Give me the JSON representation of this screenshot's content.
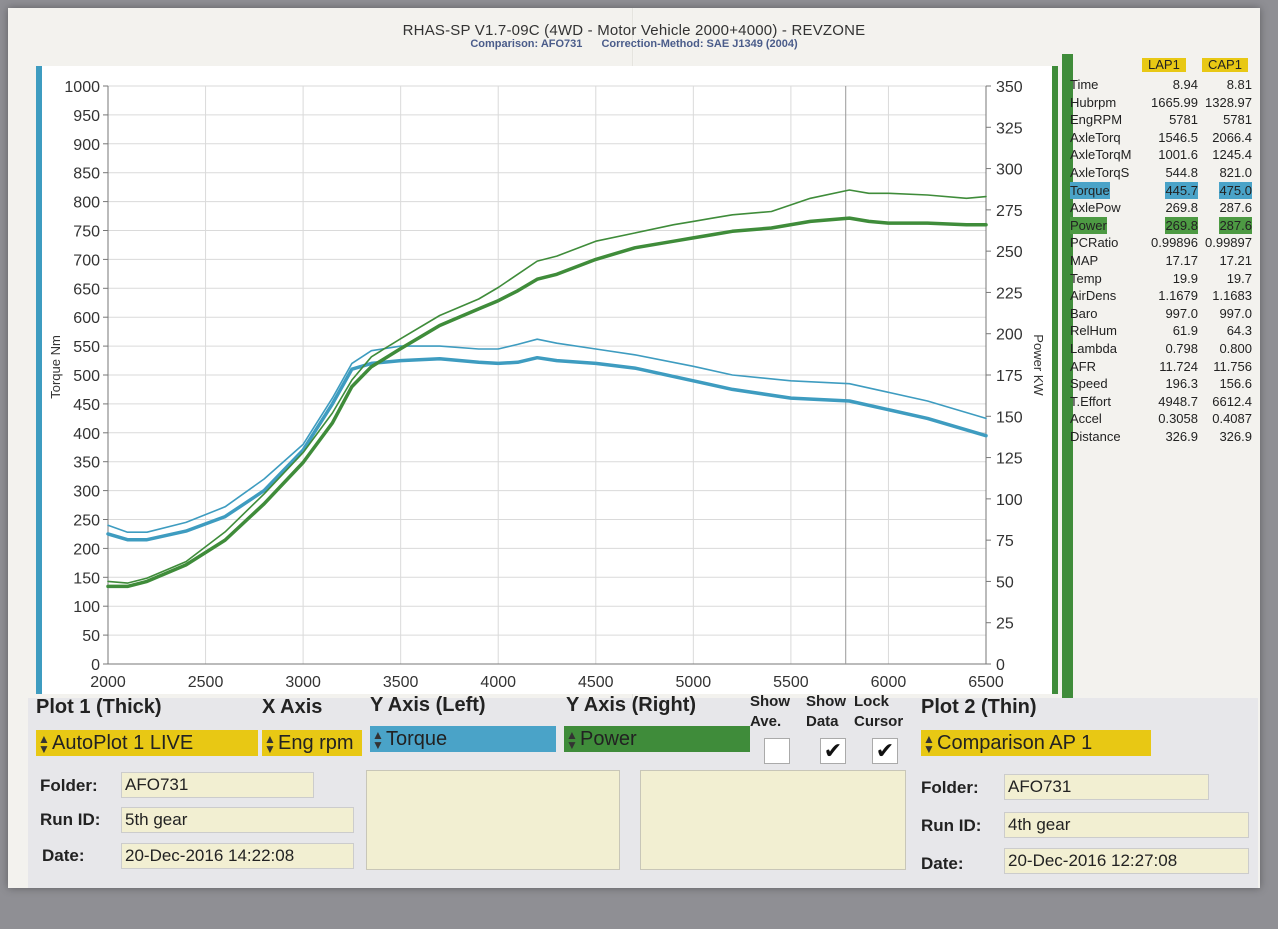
{
  "header": {
    "title": "RHAS-SP V1.7-09C  (4WD - Motor Vehicle 2000+4000) - REVZONE",
    "comparison": "Comparison: AFO731",
    "correction": "Correction-Method: SAE J1349 (2004)"
  },
  "colors": {
    "torque": "#3e9cc0",
    "power": "#3f8c3a",
    "highlight": "#e8c814"
  },
  "chart_data": {
    "type": "line",
    "xlabel": "",
    "ylabel_left": "Torque Nm",
    "ylabel_right": "Power KW",
    "xlim": [
      2000,
      6500
    ],
    "ylim_left": [
      0,
      1000
    ],
    "ylim_right": [
      0,
      350
    ],
    "x_ticks": [
      "2000",
      "2500",
      "3000",
      "3500",
      "4000",
      "4500",
      "5000",
      "5500",
      "6000",
      "6500"
    ],
    "y_left_ticks": [
      "0",
      "50",
      "100",
      "150",
      "200",
      "250",
      "300",
      "350",
      "400",
      "450",
      "500",
      "550",
      "600",
      "650",
      "700",
      "750",
      "800",
      "850",
      "900",
      "950",
      "1000"
    ],
    "y_right_ticks": [
      "0",
      "25",
      "50",
      "75",
      "100",
      "125",
      "150",
      "175",
      "200",
      "225",
      "250",
      "275",
      "300",
      "325",
      "350"
    ],
    "grid": true,
    "cursor_x": 5781,
    "series": [
      {
        "name": "Torque",
        "axis": "left",
        "style": "thick",
        "x": [
          2000,
          2100,
          2200,
          2400,
          2600,
          2800,
          3000,
          3150,
          3250,
          3350,
          3500,
          3700,
          3900,
          4000,
          4100,
          4200,
          4300,
          4500,
          4700,
          5000,
          5200,
          5500,
          5800,
          6000,
          6200,
          6500
        ],
        "y": [
          225,
          215,
          215,
          230,
          255,
          300,
          370,
          450,
          510,
          520,
          525,
          528,
          522,
          520,
          522,
          530,
          525,
          520,
          512,
          490,
          475,
          460,
          455,
          440,
          425,
          395
        ]
      },
      {
        "name": "Torque",
        "axis": "left",
        "style": "thin",
        "x": [
          2000,
          2100,
          2200,
          2400,
          2600,
          2800,
          3000,
          3150,
          3250,
          3350,
          3500,
          3700,
          3900,
          4000,
          4100,
          4200,
          4300,
          4500,
          4700,
          5000,
          5200,
          5500,
          5800,
          6000,
          6200,
          6500
        ],
        "y": [
          240,
          228,
          228,
          245,
          272,
          320,
          380,
          460,
          520,
          542,
          550,
          550,
          545,
          545,
          553,
          562,
          555,
          545,
          535,
          515,
          500,
          490,
          485,
          470,
          455,
          425
        ]
      },
      {
        "name": "Power",
        "axis": "right",
        "style": "thick",
        "x": [
          2000,
          2100,
          2200,
          2400,
          2600,
          2800,
          3000,
          3150,
          3250,
          3350,
          3500,
          3700,
          3900,
          4000,
          4100,
          4200,
          4300,
          4500,
          4700,
          4900,
          5000,
          5100,
          5200,
          5400,
          5600,
          5800,
          5900,
          6000,
          6200,
          6400,
          6500
        ],
        "y": [
          47,
          47,
          50,
          60,
          75,
          97,
          122,
          146,
          168,
          180,
          191,
          205,
          215,
          220,
          226,
          233,
          236,
          245,
          252,
          256,
          258,
          260,
          262,
          264,
          268,
          270,
          268,
          267,
          267,
          266,
          266
        ]
      },
      {
        "name": "Power",
        "axis": "right",
        "style": "thin",
        "x": [
          2000,
          2100,
          2200,
          2400,
          2600,
          2800,
          3000,
          3150,
          3250,
          3350,
          3500,
          3700,
          3900,
          4000,
          4100,
          4200,
          4300,
          4500,
          4700,
          4900,
          5000,
          5100,
          5200,
          5400,
          5600,
          5800,
          5900,
          6000,
          6200,
          6400,
          6500
        ],
        "y": [
          50,
          49,
          52,
          62,
          80,
          103,
          128,
          152,
          172,
          186,
          197,
          211,
          221,
          228,
          236,
          244,
          247,
          256,
          261,
          266,
          268,
          270,
          272,
          274,
          282,
          287,
          285,
          285,
          284,
          282,
          283
        ]
      }
    ]
  },
  "readout": {
    "col_a": "LAP1",
    "col_b": "CAP1",
    "rows": [
      {
        "name": "Time",
        "a": "8.94",
        "b": "8.81"
      },
      {
        "name": "Hubrpm",
        "a": "1665.99",
        "b": "1328.97"
      },
      {
        "name": "EngRPM",
        "a": "5781",
        "b": "5781"
      },
      {
        "name": "AxleTorq",
        "a": "1546.5",
        "b": "2066.4"
      },
      {
        "name": "AxleTorqM",
        "a": "1001.6",
        "b": "1245.4"
      },
      {
        "name": "AxleTorqS",
        "a": "544.8",
        "b": "821.0"
      },
      {
        "name": "Torque",
        "a": "445.7",
        "b": "475.0",
        "hl": "blue"
      },
      {
        "name": "AxlePow",
        "a": "269.8",
        "b": "287.6"
      },
      {
        "name": "Power",
        "a": "269.8",
        "b": "287.6",
        "hl": "green"
      },
      {
        "name": "PCRatio",
        "a": "0.99896",
        "b": "0.99897"
      },
      {
        "name": "MAP",
        "a": "17.17",
        "b": "17.21"
      },
      {
        "name": "Temp",
        "a": "19.9",
        "b": "19.7"
      },
      {
        "name": "AirDens",
        "a": "1.1679",
        "b": "1.1683"
      },
      {
        "name": "Baro",
        "a": "997.0",
        "b": "997.0"
      },
      {
        "name": "RelHum",
        "a": "61.9",
        "b": "64.3"
      },
      {
        "name": "Lambda",
        "a": "0.798",
        "b": "0.800"
      },
      {
        "name": "AFR",
        "a": "11.724",
        "b": "11.756"
      },
      {
        "name": "Speed",
        "a": "196.3",
        "b": "156.6"
      },
      {
        "name": "T.Effort",
        "a": "4948.7",
        "b": "6612.4"
      },
      {
        "name": "Accel",
        "a": "0.3058",
        "b": "0.4087"
      },
      {
        "name": "Distance",
        "a": "326.9",
        "b": "326.9"
      }
    ]
  },
  "controls": {
    "plot1_label": "Plot 1 (Thick)",
    "xaxis_label": "X Axis",
    "yleft_label": "Y Axis (Left)",
    "yright_label": "Y Axis (Right)",
    "show_ave_label": "Show Ave.",
    "show_data_label": "Show Data",
    "lock_cursor_label": "Lock Cursor",
    "plot2_label": "Plot 2 (Thin)",
    "plot1_value": "AutoPlot 1 LIVE",
    "xaxis_value": "Eng rpm",
    "yleft_value": "Torque",
    "yright_value": "Power",
    "plot2_value": "Comparison AP 1",
    "show_ave": false,
    "show_data": true,
    "lock_cursor": true
  },
  "run1": {
    "folder_label": "Folder:",
    "folder": "AFO731",
    "runid_label": "Run ID:",
    "runid": "5th gear",
    "date_label": "Date:",
    "date": "20-Dec-2016  14:22:08"
  },
  "run2": {
    "folder_label": "Folder:",
    "folder": "AFO731",
    "runid_label": "Run ID:",
    "runid": "4th gear",
    "date_label": "Date:",
    "date": "20-Dec-2016  12:27:08"
  }
}
